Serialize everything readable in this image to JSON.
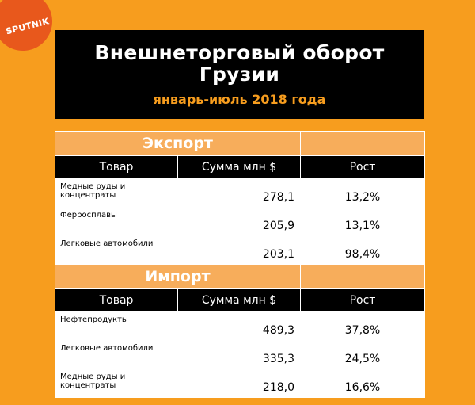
{
  "logo": {
    "text": "SPUTNIK"
  },
  "header": {
    "title": "Внешнеторговый оборот Грузии",
    "subtitle": "январь-июль 2018 года"
  },
  "table": {
    "columns": [
      "Товар",
      "Сумма  млн $",
      "Рост"
    ],
    "export": {
      "label": "Экспорт",
      "rows": [
        {
          "name": "Медные руды и концентраты",
          "sum": "278,1",
          "growth": "13,2%"
        },
        {
          "name": "Ферросплавы",
          "sum": "205,9",
          "growth": "13,1%"
        },
        {
          "name": "Легковые автомобили",
          "sum": "203,1",
          "growth": "98,4%"
        }
      ]
    },
    "import": {
      "label": "Импорт",
      "rows": [
        {
          "name": "Нефтепродукты",
          "sum": "489,3",
          "growth": "37,8%"
        },
        {
          "name": "Легковые автомобили",
          "sum": "335,3",
          "growth": "24,5%"
        },
        {
          "name": "Медные руды и концентраты",
          "sum": "218,0",
          "growth": "16,6%"
        }
      ]
    }
  },
  "colors": {
    "background": "#f79d1e",
    "section": "#f7ad5b",
    "header": "#000000",
    "logo": "#e8581c"
  }
}
